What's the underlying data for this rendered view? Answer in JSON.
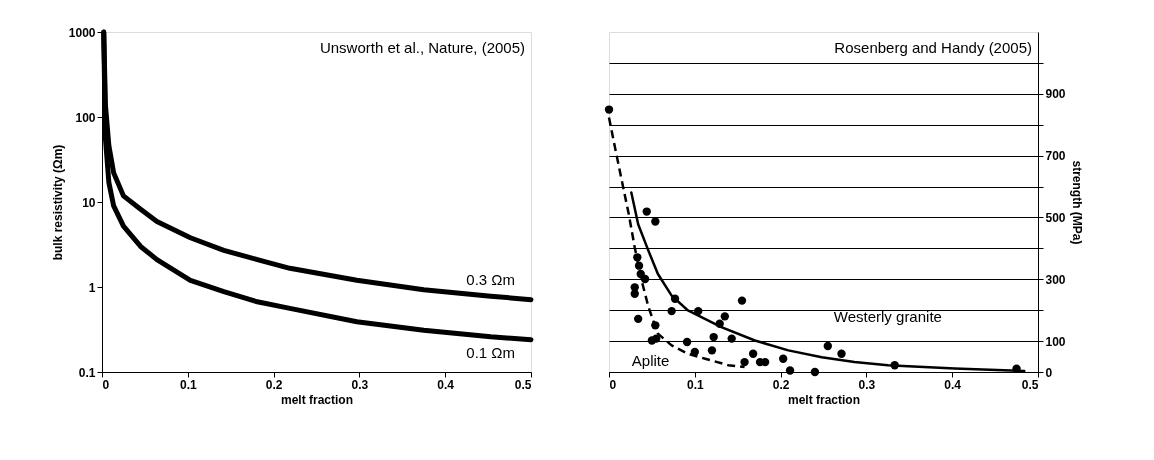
{
  "chart_data": [
    {
      "type": "line",
      "xlabel": "melt fraction",
      "ylabel": "bulk resistivity (Ωm)",
      "log": "y",
      "xlim": [
        0,
        0.5
      ],
      "xticks": [
        0,
        0.1,
        0.2,
        0.3,
        0.4,
        0.5
      ],
      "ylim": [
        0.1,
        1000
      ],
      "yticks": [
        0.1,
        1,
        10,
        100,
        1000
      ],
      "grid": false,
      "marker": "none",
      "line_style": "solid",
      "series": [
        {
          "name": "0.3 Ωm",
          "color": "#000000",
          "x": [
            0.002,
            0.004,
            0.008,
            0.0136,
            0.025,
            0.045,
            0.064,
            0.103,
            0.142,
            0.181,
            0.219,
            0.297,
            0.375,
            0.453,
            0.5
          ],
          "values": [
            1000,
            138,
            46,
            22,
            11.8,
            8.2,
            5.9,
            3.8,
            2.7,
            2.1,
            1.66,
            1.2,
            0.93,
            0.78,
            0.71
          ]
        },
        {
          "name": "0.1 Ωm",
          "color": "#000000",
          "x": [
            0.002,
            0.004,
            0.008,
            0.0136,
            0.025,
            0.045,
            0.064,
            0.103,
            0.142,
            0.181,
            0.219,
            0.297,
            0.375,
            0.453,
            0.5
          ],
          "values": [
            1000,
            56,
            17,
            9,
            5.2,
            3.0,
            2.1,
            1.2,
            0.88,
            0.67,
            0.56,
            0.39,
            0.31,
            0.26,
            0.24
          ]
        }
      ],
      "annotations": [
        "Unsworth et al., Nature, (2005)"
      ]
    },
    {
      "type": "scatter",
      "xlabel": "melt fraction",
      "y2label": "strength (MPa)",
      "xlim": [
        0,
        0.5
      ],
      "xticks": [
        0,
        0.1,
        0.2,
        0.3,
        0.4,
        0.5
      ],
      "y2lim": [
        0,
        1100
      ],
      "y2ticks": [
        0,
        100,
        {
          "value": 200,
          "label": null
        },
        300,
        {
          "value": 400,
          "label": null
        },
        500,
        {
          "value": 600,
          "label": null
        },
        700,
        {
          "value": 800,
          "label": null
        },
        900,
        {
          "value": 1000,
          "label": null
        }
      ],
      "grid": "y",
      "marker": "circle",
      "series": [
        {
          "color": "#000000",
          "axis": "y2",
          "x": [
            0,
            0.044,
            0.054,
            0.033,
            0.035,
            0.037,
            0.042,
            0.03,
            0.03,
            0.034,
            0.054,
            0.05,
            0.055,
            0.077,
            0.073,
            0.091,
            0.1,
            0.104,
            0.135,
            0.129,
            0.122,
            0.12,
            0.143,
            0.155,
            0.158,
            0.168,
            0.176,
            0.182,
            0.203,
            0.211,
            0.24,
            0.255,
            0.271,
            0.333,
            0.475
          ],
          "values": [
            849,
            519,
            487,
            371,
            344,
            317,
            301,
            274,
            253,
            172,
            151,
            102,
            108,
            237,
            197,
            97,
            65,
            197,
            180,
            156,
            113,
            70,
            108,
            231,
            32,
            59,
            32,
            32,
            43,
            5,
            0,
            84,
            59,
            22,
            11
          ]
        },
        {
          "name": "Westerly granite",
          "type": "line",
          "line_style": "solid",
          "marker": "none",
          "color": "#000000",
          "axis": "y2",
          "x": [
            0.026,
            0.034,
            0.046,
            0.057,
            0.073,
            0.092,
            0.131,
            0.17,
            0.209,
            0.248,
            0.286,
            0.325,
            0.403,
            0.484
          ],
          "values": [
            581,
            478,
            392,
            317,
            247,
            199,
            145,
            102,
            70,
            48,
            32,
            22,
            11,
            3
          ]
        },
        {
          "name": "Aplite",
          "type": "line",
          "line_style": "dashed",
          "marker": "none",
          "color": "#000000",
          "axis": "y2",
          "x": [
            0,
            0.007,
            0.015,
            0.023,
            0.03,
            0.038,
            0.046,
            0.057,
            0.073,
            0.092,
            0.112,
            0.139,
            0.158
          ],
          "values": [
            823,
            726,
            618,
            511,
            403,
            296,
            210,
            124,
            86,
            59,
            43,
            22,
            16
          ]
        }
      ],
      "annotations": [
        "Rosenberg and Handy  (2005)"
      ]
    }
  ]
}
